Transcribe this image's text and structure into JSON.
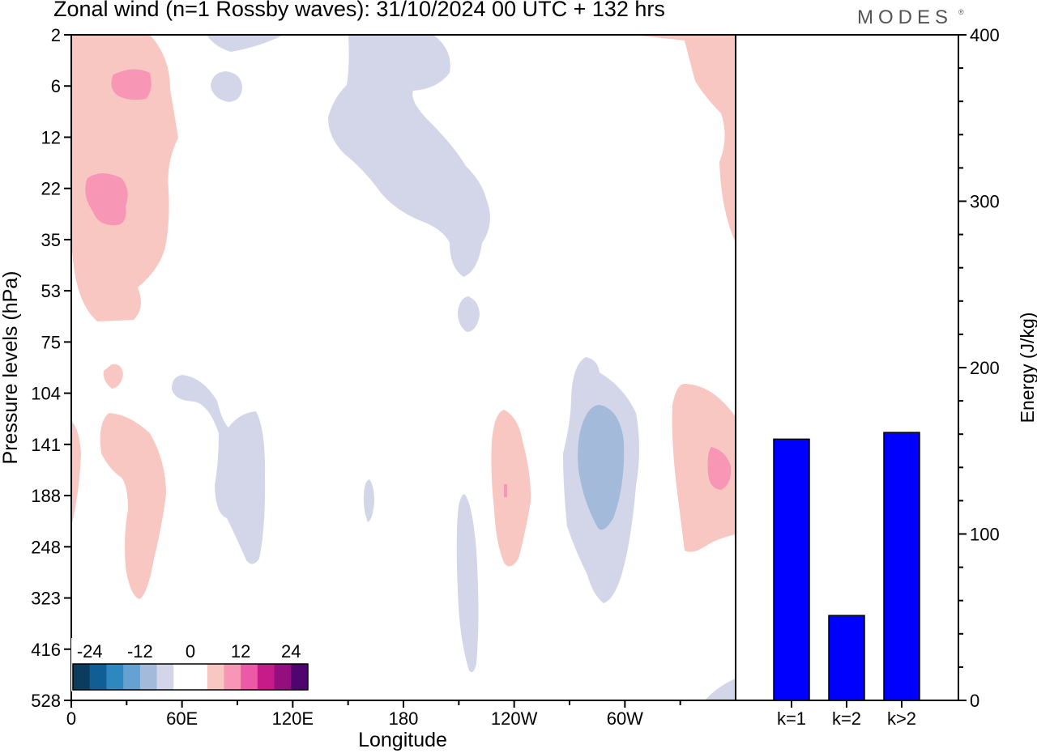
{
  "chart_data": [
    {
      "type": "heatmap",
      "title": "Zonal wind (n=1 Rossby waves):  31/10/2024  00 UTC  + 132 hrs",
      "xlabel": "Longitude",
      "ylabel": "Pressure levels (hPa)",
      "x_ticks": [
        "0",
        "60E",
        "120E",
        "180",
        "120W",
        "60W"
      ],
      "y_ticks": [
        "2",
        "6",
        "12",
        "22",
        "35",
        "53",
        "75",
        "104",
        "141",
        "188",
        "248",
        "323",
        "416",
        "528"
      ],
      "colorbar": {
        "tick_labels": [
          "-24",
          "-12",
          "0",
          "12",
          "24"
        ],
        "colors": [
          "#0b3c5d",
          "#0f5f96",
          "#2e87c0",
          "#66a2cf",
          "#a3badb",
          "#d3d6e8",
          "#ffffff",
          "#ffffff",
          "#f8c7c2",
          "#f796b5",
          "#ec5aa6",
          "#c71b8a",
          "#930e7e",
          "#4f046f"
        ]
      }
    },
    {
      "type": "bar",
      "categories": [
        "k=1",
        "k=2",
        "k>2"
      ],
      "values": [
        157,
        51,
        161
      ],
      "ylabel": "Energy (J/kg)",
      "ylim": [
        0,
        400
      ],
      "y_ticks": [
        "0",
        "100",
        "200",
        "300",
        "400"
      ],
      "bar_color": "#0000ff"
    }
  ],
  "branding": {
    "logo": "MODES",
    "mark": "®"
  }
}
